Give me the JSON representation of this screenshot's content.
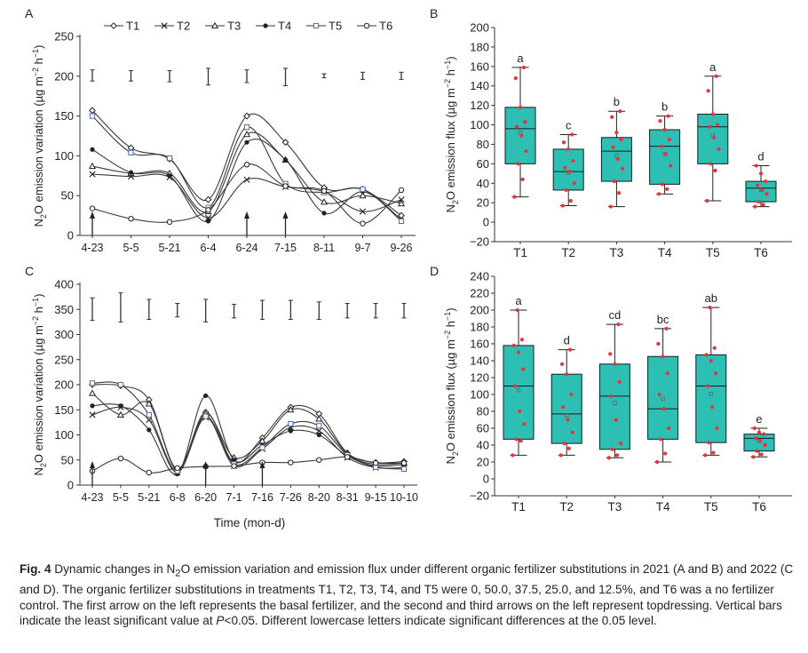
{
  "panel_letters": [
    "A",
    "B",
    "C",
    "D"
  ],
  "legend_labels": [
    "T1",
    "T2",
    "T3",
    "T4",
    "T5",
    "T6"
  ],
  "colors": {
    "box_fill": "#2ebfb4",
    "box_stroke": "#1b1b1b",
    "point": "#e8333a",
    "line": "#3a3a3a"
  },
  "xlabel_time": "Time (mon-d)",
  "chart_data": [
    {
      "panel": "A",
      "type": "line",
      "ylabel": "N2O emission variation (µg m⁻² h⁻¹)",
      "ylabel_parts": {
        "main": "N",
        "sub2": "2",
        "mid": "O emission variation (µg m",
        "sup1": "−2",
        "mid2": " h",
        "sup2": "−1",
        "end": ")"
      },
      "ylim": [
        0,
        250
      ],
      "yticks": [
        "0",
        "50",
        "100",
        "150",
        "200",
        "250"
      ],
      "categories": [
        "4-23",
        "5-5",
        "5-21",
        "6-4",
        "6-24",
        "7-15",
        "8-11",
        "9-7",
        "9-26"
      ],
      "series": [
        {
          "name": "T1",
          "values": [
            157,
            110,
            96,
            45,
            150,
            117,
            60,
            58,
            25
          ]
        },
        {
          "name": "T2",
          "values": [
            77,
            74,
            73,
            22,
            70,
            61,
            55,
            30,
            45
          ]
        },
        {
          "name": "T3",
          "values": [
            87,
            78,
            78,
            30,
            127,
            95,
            42,
            50,
            40
          ]
        },
        {
          "name": "T4",
          "values": [
            108,
            79,
            75,
            18,
            117,
            95,
            28,
            55,
            20
          ]
        },
        {
          "name": "T5",
          "values": [
            150,
            104,
            97,
            35,
            136,
            65,
            54,
            58,
            18
          ]
        },
        {
          "name": "T6",
          "values": [
            34,
            21,
            17,
            32,
            89,
            62,
            56,
            15,
            57
          ]
        }
      ],
      "lsd_bars": [
        {
          "x": "4-23",
          "low": 194,
          "high": 208
        },
        {
          "x": "5-5",
          "low": 194,
          "high": 207
        },
        {
          "x": "5-21",
          "low": 193,
          "high": 207
        },
        {
          "x": "6-4",
          "low": 189,
          "high": 210
        },
        {
          "x": "6-24",
          "low": 192,
          "high": 208
        },
        {
          "x": "7-15",
          "low": 188,
          "high": 210
        },
        {
          "x": "8-11",
          "low": 198,
          "high": 203
        },
        {
          "x": "9-7",
          "low": 196,
          "high": 205
        },
        {
          "x": "9-26",
          "low": 196,
          "high": 205
        }
      ],
      "arrows_at": [
        "4-23",
        "6-24",
        "7-15"
      ]
    },
    {
      "panel": "B",
      "type": "box",
      "ylabel": "N2O emission flux (µg m⁻² h⁻¹)",
      "ylabel_parts": {
        "main": "N",
        "sub2": "2",
        "mid": "O emission flux (µg m",
        "sup1": "−2",
        "mid2": " h",
        "sup2": "−1",
        "end": ")"
      },
      "ylim": [
        -20,
        200
      ],
      "yticks": [
        "−20",
        "0",
        "20",
        "40",
        "60",
        "80",
        "100",
        "120",
        "140",
        "160",
        "180",
        "200"
      ],
      "categories": [
        "T1",
        "T2",
        "T3",
        "T4",
        "T5",
        "T6"
      ],
      "boxes": [
        {
          "name": "T1",
          "min": 26,
          "q1": 60,
          "median": 96,
          "q3": 118,
          "max": 159,
          "letter": "a",
          "mean": 92,
          "points": [
            26,
            44,
            60,
            73,
            89,
            98,
            103,
            118,
            148,
            159
          ]
        },
        {
          "name": "T2",
          "min": 17,
          "q1": 33,
          "median": 52,
          "q3": 75,
          "max": 90,
          "letter": "c",
          "mean": 51,
          "points": [
            17,
            22,
            33,
            40,
            52,
            56,
            63,
            75,
            82,
            90
          ]
        },
        {
          "name": "T3",
          "min": 16,
          "q1": 42,
          "median": 73,
          "q3": 87,
          "max": 114,
          "letter": "b",
          "mean": 68,
          "points": [
            16,
            30,
            42,
            55,
            65,
            77,
            85,
            92,
            108,
            114
          ]
        },
        {
          "name": "T4",
          "min": 29,
          "q1": 39,
          "median": 78,
          "q3": 95,
          "max": 109,
          "letter": "b",
          "mean": 70,
          "points": [
            29,
            34,
            39,
            58,
            70,
            78,
            85,
            95,
            104,
            109
          ]
        },
        {
          "name": "T5",
          "min": 22,
          "q1": 60,
          "median": 98,
          "q3": 111,
          "max": 150,
          "letter": "a",
          "mean": 89,
          "points": [
            22,
            53,
            60,
            75,
            87,
            98,
            100,
            111,
            135,
            150
          ]
        },
        {
          "name": "T6",
          "min": 16,
          "q1": 21,
          "median": 35,
          "q3": 42,
          "max": 58,
          "letter": "d",
          "mean": 33,
          "points": [
            16,
            18,
            21,
            29,
            33,
            38,
            42,
            50,
            58
          ]
        }
      ]
    },
    {
      "panel": "C",
      "type": "line",
      "ylabel": "N2O emission variation (µg m⁻² h⁻¹)",
      "ylabel_parts": {
        "main": "N",
        "sub2": "2",
        "mid": "O emission variation (µg m",
        "sup1": "−2",
        "mid2": " h",
        "sup2": "−1",
        "end": ")"
      },
      "ylim": [
        0,
        400
      ],
      "yticks": [
        "0",
        "50",
        "100",
        "150",
        "200",
        "250",
        "300",
        "350",
        "400"
      ],
      "categories": [
        "4-23",
        "5-5",
        "5-21",
        "6-8",
        "6-20",
        "7-1",
        "7-16",
        "7-26",
        "8-20",
        "8-31",
        "9-15",
        "10-10"
      ],
      "series": [
        {
          "name": "T1",
          "values": [
            200,
            198,
            170,
            32,
            145,
            45,
            94,
            155,
            142,
            64,
            45,
            47
          ]
        },
        {
          "name": "T2",
          "values": [
            140,
            155,
            130,
            25,
            135,
            38,
            72,
            115,
            108,
            55,
            35,
            35
          ]
        },
        {
          "name": "T3",
          "values": [
            183,
            140,
            162,
            30,
            142,
            55,
            88,
            150,
            132,
            62,
            41,
            44
          ]
        },
        {
          "name": "T4",
          "values": [
            158,
            158,
            110,
            22,
            178,
            50,
            80,
            108,
            100,
            58,
            38,
            41
          ]
        },
        {
          "name": "T5",
          "values": [
            203,
            200,
            140,
            28,
            137,
            42,
            75,
            122,
            118,
            60,
            36,
            32
          ]
        },
        {
          "name": "T6",
          "values": [
            28,
            53,
            25,
            34,
            37,
            38,
            45,
            45,
            50,
            56,
            44,
            44
          ]
        }
      ],
      "lsd_bars": [
        {
          "x": "4-23",
          "low": 328,
          "high": 373
        },
        {
          "x": "5-5",
          "low": 325,
          "high": 383
        },
        {
          "x": "5-21",
          "low": 330,
          "high": 370
        },
        {
          "x": "6-8",
          "low": 335,
          "high": 362
        },
        {
          "x": "6-20",
          "low": 325,
          "high": 370
        },
        {
          "x": "7-1",
          "low": 333,
          "high": 360
        },
        {
          "x": "7-16",
          "low": 330,
          "high": 368
        },
        {
          "x": "7-26",
          "low": 330,
          "high": 368
        },
        {
          "x": "8-20",
          "low": 330,
          "high": 365
        },
        {
          "x": "8-31",
          "low": 333,
          "high": 362
        },
        {
          "x": "9-15",
          "low": 333,
          "high": 362
        },
        {
          "x": "10-10",
          "low": 333,
          "high": 362
        }
      ],
      "arrows_at": [
        "4-23",
        "6-20",
        "7-16"
      ]
    },
    {
      "panel": "D",
      "type": "box",
      "ylabel": "N2O emission flux (µg m⁻² h⁻¹)",
      "ylabel_parts": {
        "main": "N",
        "sub2": "2",
        "mid": "O emission flux (µg m",
        "sup1": "−2",
        "mid2": " h",
        "sup2": "−1",
        "end": ")"
      },
      "ylim": [
        -20,
        240
      ],
      "yticks": [
        "−20",
        "0",
        "20",
        "40",
        "60",
        "80",
        "100",
        "120",
        "140",
        "160",
        "180",
        "200",
        "220",
        "240"
      ],
      "categories": [
        "T1",
        "T2",
        "T3",
        "T4",
        "T5",
        "T6"
      ],
      "boxes": [
        {
          "name": "T1",
          "min": 28,
          "q1": 47,
          "median": 110,
          "q3": 158,
          "max": 200,
          "letter": "a",
          "mean": 105,
          "points": [
            28,
            45,
            47,
            65,
            80,
            110,
            130,
            150,
            158,
            165,
            200
          ]
        },
        {
          "name": "T2",
          "min": 28,
          "q1": 42,
          "median": 77,
          "q3": 124,
          "max": 153,
          "letter": "d",
          "mean": 75,
          "points": [
            28,
            36,
            42,
            55,
            70,
            85,
            100,
            124,
            136,
            153
          ]
        },
        {
          "name": "T3",
          "min": 25,
          "q1": 35,
          "median": 98,
          "q3": 136,
          "max": 183,
          "letter": "cd",
          "mean": 90,
          "points": [
            25,
            28,
            35,
            42,
            70,
            98,
            115,
            136,
            148,
            183
          ]
        },
        {
          "name": "T4",
          "min": 20,
          "q1": 47,
          "median": 83,
          "q3": 145,
          "max": 178,
          "letter": "bc",
          "mean": 95,
          "points": [
            20,
            30,
            47,
            60,
            83,
            100,
            125,
            145,
            160,
            178
          ]
        },
        {
          "name": "T5",
          "min": 28,
          "q1": 43,
          "median": 110,
          "q3": 147,
          "max": 203,
          "letter": "ab",
          "mean": 101,
          "points": [
            28,
            31,
            43,
            60,
            85,
            110,
            125,
            140,
            147,
            155,
            203
          ]
        },
        {
          "name": "T6",
          "min": 26,
          "q1": 33,
          "median": 48,
          "q3": 53,
          "max": 60,
          "letter": "e",
          "mean": 45,
          "points": [
            26,
            29,
            33,
            40,
            45,
            48,
            53,
            55,
            60
          ]
        }
      ]
    }
  ],
  "caption": {
    "label": "Fig. 4",
    "part1": " Dynamic changes in N",
    "sub2": "2",
    "part2": "O emission variation and emission flux under different organic fertilizer substitutions in 2021 (A and B) and 2022 (C and D).  The organic fertilizer substitutions in treatments T1, T2, T3, T4, and T5 were 0, 50.0, 37.5, 25.0, and 12.5%, and T6 was a no fertilizer control.  The first arrow on the left represents the basal fertilizer, and the second and third arrows on the left represent topdressing.  Vertical bars indicate the least significant value at ",
    "p_italic": "P",
    "part3": "<0.05.  Different lowercase letters indicate significant differences at the 0.05 level."
  }
}
